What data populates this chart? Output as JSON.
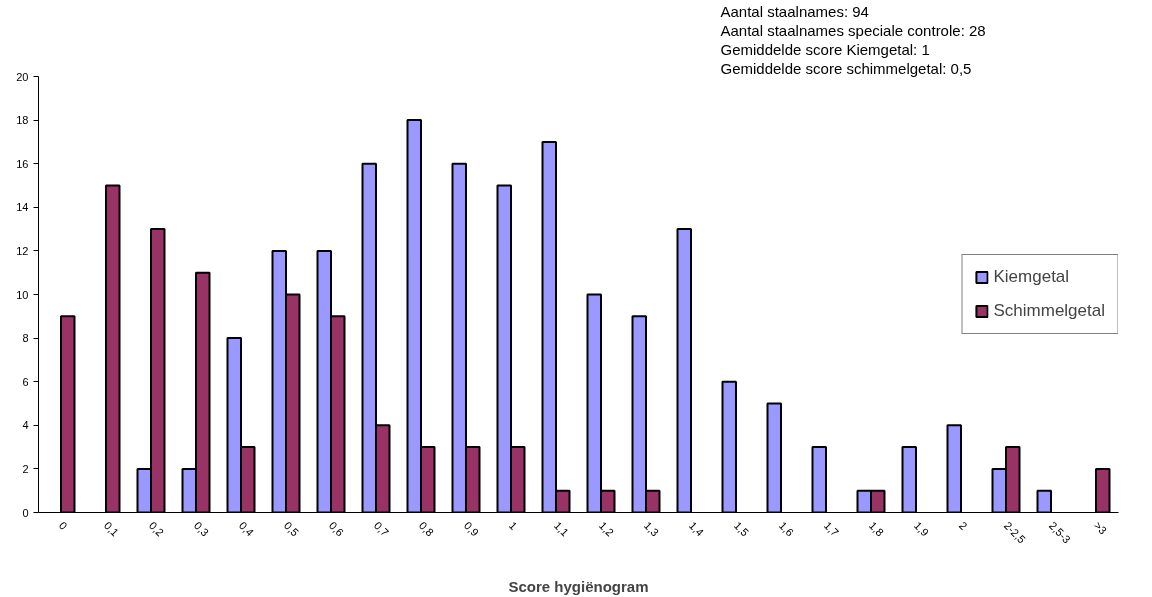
{
  "chart_data": {
    "type": "bar",
    "xlabel": "Score hygiënogram",
    "categories": [
      "0",
      "0,1",
      "0,2",
      "0,3",
      "0,4",
      "0,5",
      "0,6",
      "0,7",
      "0,8",
      "0,9",
      "1",
      "1,1",
      "1,2",
      "1,3",
      "1,4",
      "1,5",
      "1,6",
      "1,7",
      "1,8",
      "1,9",
      "2",
      "2-2,5",
      "2,5-3",
      ">3"
    ],
    "series": [
      {
        "name": "Kiemgetal",
        "color": "#9999ff",
        "values": [
          null,
          null,
          2,
          2,
          8,
          12,
          12,
          16,
          18,
          16,
          15,
          17,
          10,
          9,
          13,
          6,
          5,
          3,
          1,
          3,
          4,
          2,
          1,
          null
        ]
      },
      {
        "name": "Schimmelgetal",
        "color": "#993366",
        "values": [
          9,
          15,
          13,
          11,
          3,
          10,
          9,
          4,
          3,
          3,
          3,
          1,
          1,
          1,
          null,
          null,
          null,
          null,
          1,
          null,
          null,
          3,
          null,
          2
        ]
      }
    ],
    "ylim": [
      0,
      20
    ],
    "yticks": [
      0,
      2,
      4,
      6,
      8,
      10,
      12,
      14,
      16,
      18,
      20
    ],
    "grid": false,
    "legend": "right",
    "annotations": [
      "Aantal staalnames: 94",
      "Aantal staalnames speciale controle: 28",
      "Gemiddelde score Kiemgetal: 1",
      "Gemiddelde score schimmelgetal: 0,5"
    ]
  }
}
